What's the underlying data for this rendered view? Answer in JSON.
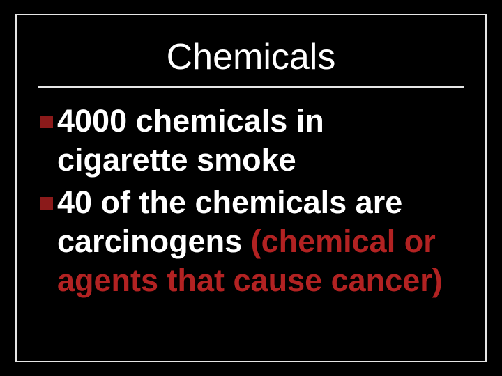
{
  "slide": {
    "title": "Chemicals",
    "background_color": "#000000",
    "frame_color": "#e6e6e6",
    "title_color": "#ffffff",
    "text_color": "#ffffff",
    "highlight_color": "#b22222",
    "bullet_color": "#8b1a1a",
    "bullets": [
      {
        "text_plain": "4000 chemicals in cigarette smoke",
        "text_highlight": ""
      },
      {
        "text_plain": "40 of the chemicals are carcinogens ",
        "text_highlight": "(chemical or agents that cause cancer)"
      }
    ]
  }
}
